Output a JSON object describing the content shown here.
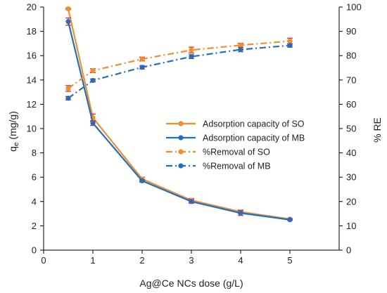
{
  "chart_data": {
    "type": "line",
    "xlabel": "Ag@Ce NCs dose (g/L)",
    "ylabel": {
      "main": "q",
      "sub": "e",
      "rest": " (mg/g)"
    },
    "y2label": "% RE",
    "xlim": [
      0,
      6
    ],
    "ylim": [
      0,
      20
    ],
    "y2lim": [
      0,
      100
    ],
    "xticks": [
      0,
      1,
      2,
      3,
      4,
      5
    ],
    "yticks": [
      0,
      2,
      4,
      6,
      8,
      10,
      12,
      14,
      16,
      18,
      20
    ],
    "y2ticks": [
      0,
      10,
      20,
      30,
      40,
      50,
      60,
      70,
      80,
      90,
      100
    ],
    "grid": false,
    "legend_position": "center-right",
    "series": [
      {
        "name": "Adsorption capacity of SO",
        "axis": "left",
        "style": "solid",
        "color": "#F28E2B",
        "x": [
          0.5,
          1,
          2,
          3,
          4,
          5
        ],
        "y": [
          19.85,
          10.9,
          5.85,
          4.1,
          3.15,
          2.55
        ],
        "err": [
          0.05,
          0.3,
          0.15,
          0.15,
          0.15,
          0.05
        ]
      },
      {
        "name": "Adsorption capacity of MB",
        "axis": "left",
        "style": "solid",
        "color": "#1F6FC5",
        "x": [
          0.5,
          1,
          2,
          3,
          4,
          5
        ],
        "y": [
          18.8,
          10.45,
          5.7,
          4.0,
          3.05,
          2.5
        ],
        "err": [
          0.3,
          0.2,
          0.1,
          0.15,
          0.2,
          0.05
        ]
      },
      {
        "name": "%Removal of SO",
        "axis": "right",
        "style": "dashdot",
        "color": "#F28E2B",
        "x": [
          0.5,
          1,
          2,
          3,
          4,
          5
        ],
        "y": [
          66.5,
          73.8,
          78.6,
          82.3,
          84.3,
          86.0
        ],
        "err": [
          1.2,
          0.8,
          0.8,
          1.2,
          0.8,
          1.2
        ]
      },
      {
        "name": "%Removal of MB",
        "axis": "right",
        "style": "dashdot",
        "color": "#1F6FC5",
        "x": [
          0.5,
          1,
          2,
          3,
          4,
          5
        ],
        "y": [
          62.5,
          69.8,
          75.2,
          79.6,
          82.5,
          84.2
        ],
        "err": [
          0.7,
          0.6,
          0.7,
          0.8,
          0.9,
          0.7
        ]
      }
    ]
  },
  "colors": {
    "errorbar": "#E03030",
    "axis": "#000000"
  }
}
